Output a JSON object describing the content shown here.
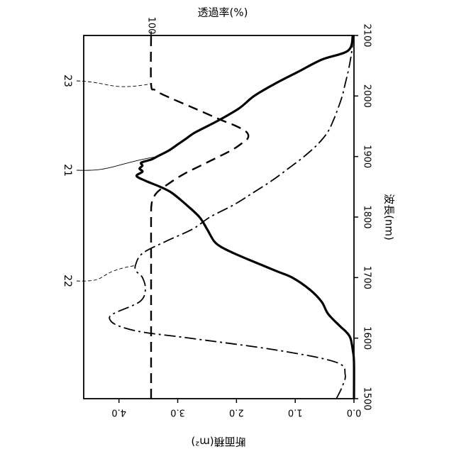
{
  "chart_data": {
    "type": "line",
    "orientation": "rotated-90-cw",
    "x_axis": {
      "label": "波長(nm)",
      "range": [
        1500,
        2100
      ],
      "ticks": [
        1500,
        1600,
        1700,
        1800,
        1900,
        2000,
        2100
      ]
    },
    "y_left_axis": {
      "label": "断面積(m²)",
      "range": [
        0,
        4.6
      ],
      "ticks": [
        0,
        1,
        2,
        3,
        4
      ],
      "tick_labels": [
        "0.0",
        "1.0",
        "2.0",
        "3.0",
        "4.0"
      ]
    },
    "y_right_axis": {
      "label": "透過率(%)",
      "tick_labels": [
        "100"
      ],
      "tick_values": [
        100
      ]
    },
    "grid": false,
    "series": [
      {
        "ref": "21",
        "style": "solid-thick",
        "x": [
          1500,
          1560,
          1580,
          1600,
          1610,
          1620,
          1640,
          1660,
          1680,
          1700,
          1710,
          1720,
          1730,
          1740,
          1750,
          1760,
          1780,
          1800,
          1820,
          1840,
          1850,
          1860,
          1868,
          1875,
          1880,
          1885,
          1890,
          1895,
          1900,
          1910,
          1920,
          1930,
          1940,
          1960,
          1980,
          2000,
          2020,
          2040,
          2060,
          2075,
          2100
        ],
        "y": [
          0.0,
          0.0,
          0.02,
          0.06,
          0.13,
          0.24,
          0.44,
          0.55,
          0.75,
          1.05,
          1.3,
          1.55,
          1.8,
          2.04,
          2.25,
          2.38,
          2.5,
          2.63,
          2.85,
          3.1,
          3.3,
          3.55,
          3.7,
          3.6,
          3.65,
          3.6,
          3.62,
          3.45,
          3.35,
          3.15,
          3.0,
          2.85,
          2.7,
          2.3,
          1.95,
          1.7,
          1.35,
          0.95,
          0.55,
          0.1,
          0.02
        ]
      },
      {
        "ref": "22",
        "style": "dash-dot",
        "x": [
          1500,
          1520,
          1540,
          1560,
          1580,
          1600,
          1610,
          1620,
          1630,
          1640,
          1660,
          1680,
          1700,
          1710,
          1720,
          1740,
          1760,
          1780,
          1800,
          1820,
          1840,
          1860,
          1880,
          1900,
          1920,
          1940,
          1960,
          1980,
          2000,
          2020,
          2040,
          2060,
          2080,
          2100
        ],
        "y": [
          0.3,
          0.2,
          0.15,
          0.3,
          1.3,
          2.8,
          3.6,
          4.0,
          4.15,
          4.1,
          3.65,
          3.55,
          3.6,
          3.7,
          3.72,
          3.6,
          3.2,
          2.75,
          2.45,
          2.05,
          1.72,
          1.4,
          1.12,
          0.85,
          0.62,
          0.45,
          0.35,
          0.27,
          0.2,
          0.15,
          0.1,
          0.06,
          0.03,
          0.02
        ]
      },
      {
        "ref": "23",
        "style": "dashed",
        "axis": "right",
        "x": [
          1500,
          1700,
          1800,
          1820,
          1830,
          1840,
          1850,
          1870,
          1890,
          1910,
          1920,
          1930,
          1940,
          1950,
          1960,
          1980,
          2000,
          2010,
          2020,
          2100
        ],
        "y": [
          100,
          100,
          100,
          99.8,
          99,
          97,
          93,
          83,
          70,
          57,
          52,
          48,
          48.5,
          54,
          62,
          77,
          92,
          98,
          100,
          100
        ]
      }
    ],
    "annotations": [
      "21",
      "22",
      "23"
    ]
  }
}
